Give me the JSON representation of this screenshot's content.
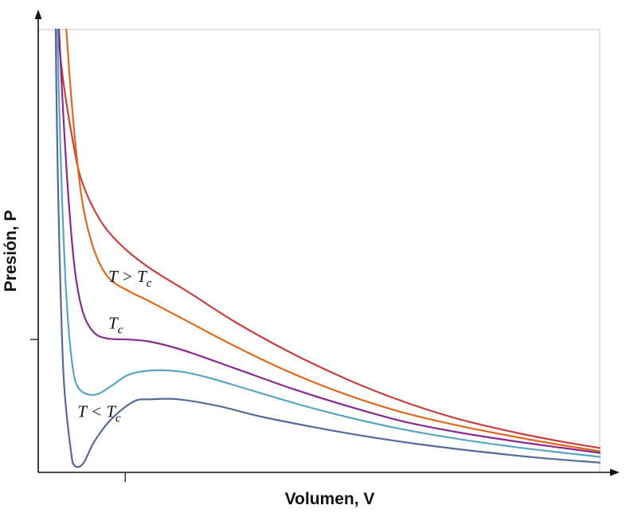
{
  "chart_data": {
    "type": "line",
    "title": "",
    "xlabel": "Volumen, V",
    "ylabel": "Presión, P",
    "xlim": [
      0,
      1
    ],
    "ylim": [
      0,
      1
    ],
    "xticks": [
      0.155
    ],
    "yticks": [
      0.3
    ],
    "grid": false,
    "series": [
      {
        "color": "#c8403f",
        "points": [
          [
            0.034,
            1.0
          ],
          [
            0.045,
            0.88
          ],
          [
            0.06,
            0.76
          ],
          [
            0.077,
            0.66
          ],
          [
            0.11,
            0.57
          ],
          [
            0.15,
            0.51
          ],
          [
            0.2,
            0.46
          ],
          [
            0.27,
            0.405
          ],
          [
            0.35,
            0.34
          ],
          [
            0.45,
            0.27
          ],
          [
            0.55,
            0.21
          ],
          [
            0.65,
            0.16
          ],
          [
            0.75,
            0.12
          ],
          [
            0.85,
            0.09
          ],
          [
            0.93,
            0.07
          ],
          [
            1.0,
            0.055
          ]
        ]
      },
      {
        "color": "#e0681d",
        "points": [
          [
            0.05,
            1.0
          ],
          [
            0.058,
            0.86
          ],
          [
            0.068,
            0.72
          ],
          [
            0.08,
            0.6
          ],
          [
            0.1,
            0.5
          ],
          [
            0.125,
            0.44
          ],
          [
            0.16,
            0.41
          ],
          [
            0.2,
            0.385
          ],
          [
            0.26,
            0.345
          ],
          [
            0.35,
            0.285
          ],
          [
            0.45,
            0.225
          ],
          [
            0.55,
            0.175
          ],
          [
            0.65,
            0.135
          ],
          [
            0.75,
            0.105
          ],
          [
            0.85,
            0.08
          ],
          [
            0.93,
            0.062
          ],
          [
            1.0,
            0.048
          ]
        ]
      },
      {
        "color": "#8a2a8f",
        "points": [
          [
            0.037,
            1.0
          ],
          [
            0.045,
            0.8
          ],
          [
            0.055,
            0.6
          ],
          [
            0.066,
            0.45
          ],
          [
            0.08,
            0.36
          ],
          [
            0.1,
            0.315
          ],
          [
            0.125,
            0.302
          ],
          [
            0.16,
            0.3
          ],
          [
            0.2,
            0.295
          ],
          [
            0.26,
            0.275
          ],
          [
            0.35,
            0.235
          ],
          [
            0.45,
            0.19
          ],
          [
            0.55,
            0.15
          ],
          [
            0.65,
            0.115
          ],
          [
            0.75,
            0.09
          ],
          [
            0.85,
            0.07
          ],
          [
            0.93,
            0.056
          ],
          [
            1.0,
            0.044
          ]
        ]
      },
      {
        "color": "#5aa5c2",
        "points": [
          [
            0.034,
            1.0
          ],
          [
            0.038,
            0.8
          ],
          [
            0.043,
            0.6
          ],
          [
            0.05,
            0.4
          ],
          [
            0.06,
            0.25
          ],
          [
            0.072,
            0.19
          ],
          [
            0.1,
            0.175
          ],
          [
            0.13,
            0.195
          ],
          [
            0.16,
            0.22
          ],
          [
            0.2,
            0.23
          ],
          [
            0.25,
            0.228
          ],
          [
            0.3,
            0.215
          ],
          [
            0.38,
            0.185
          ],
          [
            0.46,
            0.155
          ],
          [
            0.55,
            0.125
          ],
          [
            0.65,
            0.097
          ],
          [
            0.75,
            0.075
          ],
          [
            0.85,
            0.057
          ],
          [
            0.93,
            0.045
          ],
          [
            1.0,
            0.035
          ]
        ]
      },
      {
        "color": "#566a99",
        "points": [
          [
            0.031,
            1.0
          ],
          [
            0.033,
            0.8
          ],
          [
            0.036,
            0.6
          ],
          [
            0.04,
            0.4
          ],
          [
            0.046,
            0.2
          ],
          [
            0.058,
            0.05
          ],
          [
            0.065,
            0.015
          ],
          [
            0.08,
            0.02
          ],
          [
            0.1,
            0.07
          ],
          [
            0.13,
            0.12
          ],
          [
            0.17,
            0.16
          ],
          [
            0.2,
            0.165
          ],
          [
            0.25,
            0.165
          ],
          [
            0.32,
            0.15
          ],
          [
            0.4,
            0.125
          ],
          [
            0.5,
            0.1
          ],
          [
            0.6,
            0.078
          ],
          [
            0.7,
            0.06
          ],
          [
            0.8,
            0.045
          ],
          [
            0.9,
            0.032
          ],
          [
            1.0,
            0.022
          ]
        ]
      }
    ],
    "annotations": [
      {
        "id": "t-above",
        "base": "T > T",
        "sub": "c",
        "x": 0.125,
        "y": 0.43
      },
      {
        "id": "t-crit",
        "base": "T",
        "sub": "c",
        "x": 0.125,
        "y": 0.325
      },
      {
        "id": "t-below",
        "base": "T < T",
        "sub": "c",
        "x": 0.07,
        "y": 0.125
      }
    ]
  }
}
